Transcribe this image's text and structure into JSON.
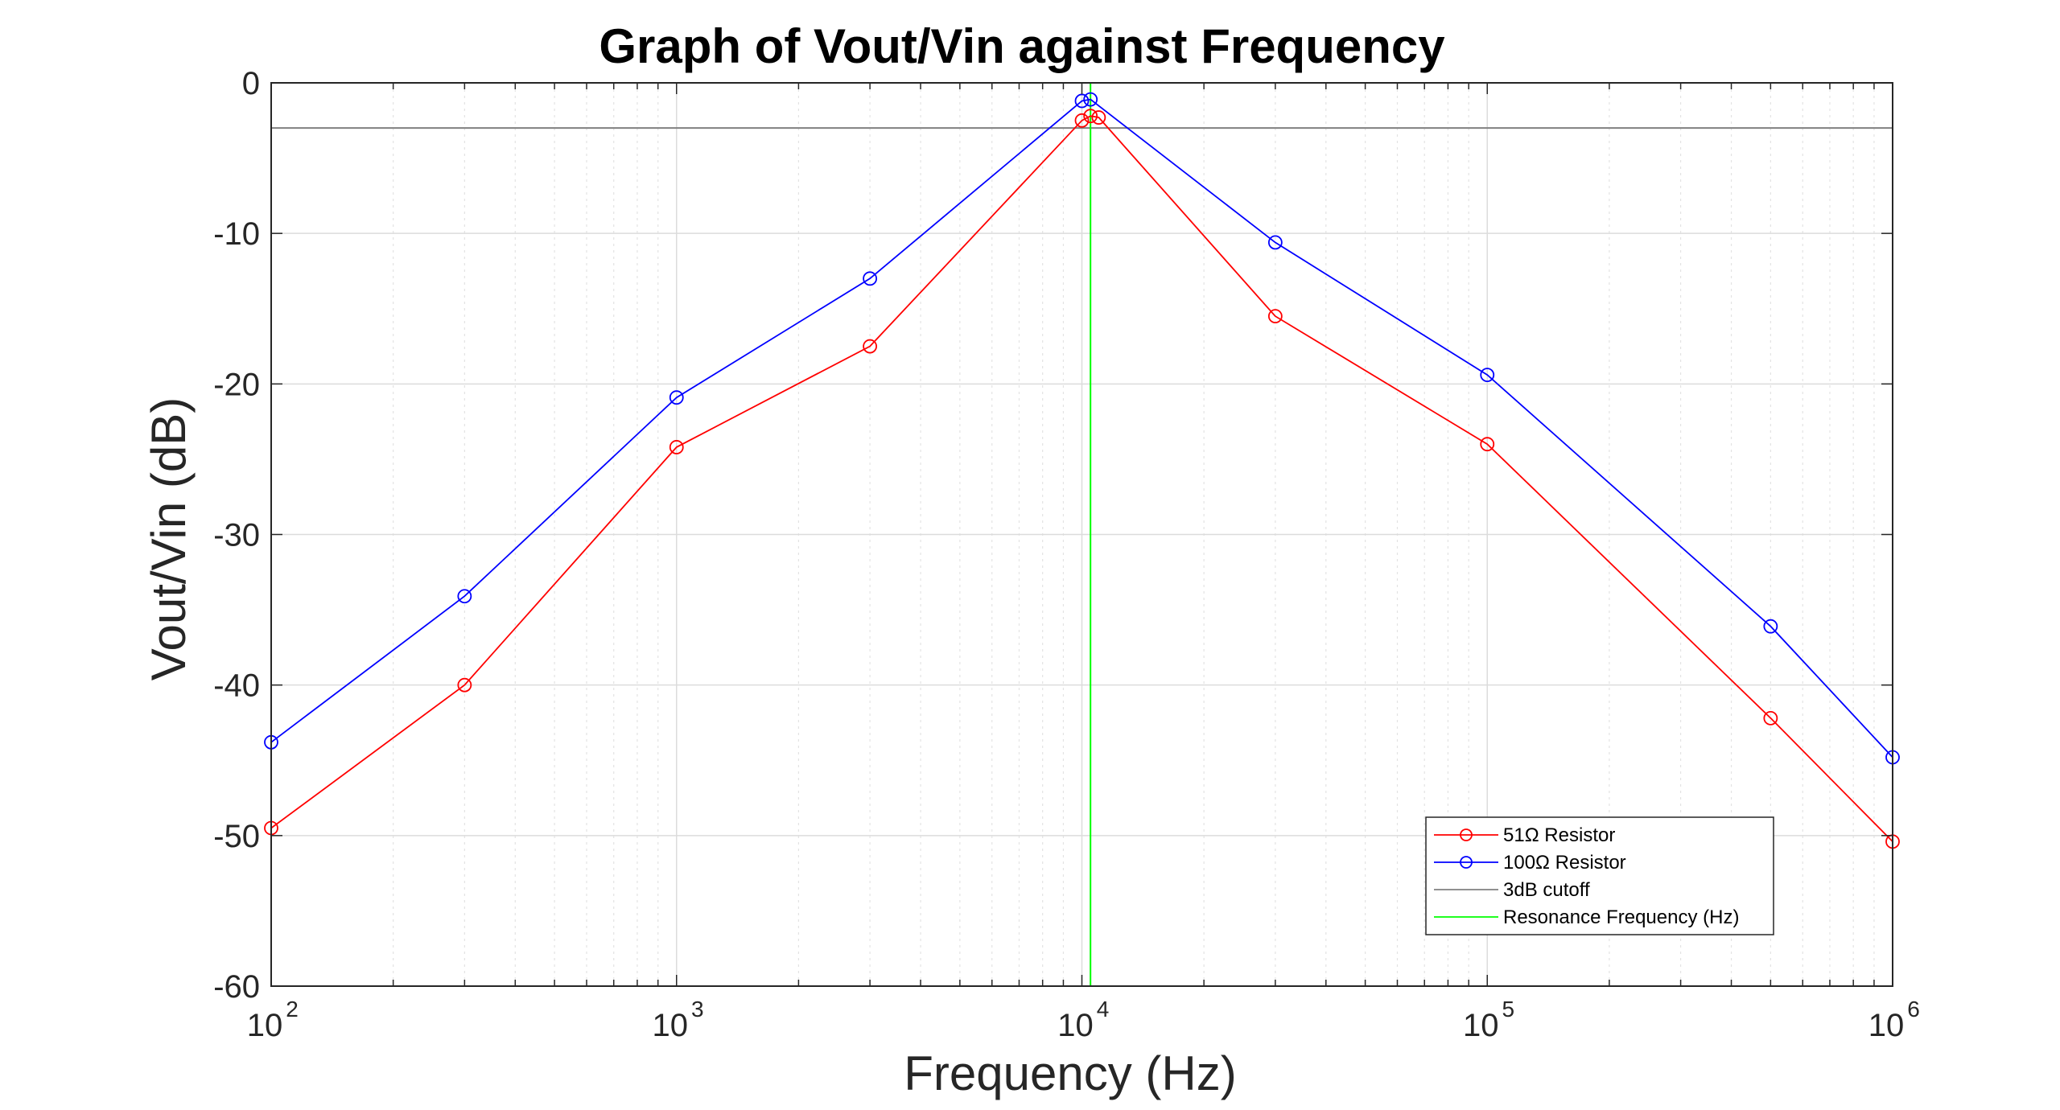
{
  "chart_data": {
    "type": "line",
    "title": "Graph of Vout/Vin against Frequency",
    "xlabel": "Frequency (Hz)",
    "ylabel": "Vout/Vin (dB)",
    "xscale": "log",
    "xlim": [
      100,
      1000000
    ],
    "ylim": [
      -60,
      0
    ],
    "grid": true,
    "legend_position": "bottom-right",
    "x_ticks": [
      {
        "base": "10",
        "exp": "2",
        "value": 100
      },
      {
        "base": "10",
        "exp": "3",
        "value": 1000
      },
      {
        "base": "10",
        "exp": "4",
        "value": 10000
      },
      {
        "base": "10",
        "exp": "5",
        "value": 100000
      },
      {
        "base": "10",
        "exp": "6",
        "value": 1000000
      }
    ],
    "y_ticks": [
      {
        "label": "0",
        "value": 0
      },
      {
        "label": "-10",
        "value": -10
      },
      {
        "label": "-20",
        "value": -20
      },
      {
        "label": "-30",
        "value": -30
      },
      {
        "label": "-40",
        "value": -40
      },
      {
        "label": "-50",
        "value": -50
      },
      {
        "label": "-60",
        "value": -60
      }
    ],
    "series": [
      {
        "name": "51Ω Resistor",
        "color": "#ff0000",
        "marker": "circle",
        "x": [
          100,
          300,
          1000,
          3000,
          10000,
          10500,
          11000,
          30000,
          100000,
          500000,
          1000000
        ],
        "y": [
          -49.5,
          -40.0,
          -24.2,
          -17.5,
          -2.5,
          -2.2,
          -2.3,
          -15.5,
          -24.0,
          -42.2,
          -50.4
        ]
      },
      {
        "name": "100Ω Resistor",
        "color": "#0000ff",
        "marker": "circle",
        "x": [
          100,
          300,
          1000,
          3000,
          10000,
          10500,
          30000,
          100000,
          500000,
          1000000
        ],
        "y": [
          -43.8,
          -34.1,
          -20.9,
          -13.0,
          -1.2,
          -1.1,
          -10.6,
          -19.4,
          -36.1,
          -44.8
        ]
      }
    ],
    "reference_lines": [
      {
        "name": "3dB cutoff",
        "orientation": "horizontal",
        "value": -3,
        "color": "#808080"
      },
      {
        "name": "Resonance Frequency (Hz)",
        "orientation": "vertical",
        "value": 10500,
        "color": "#00ff00"
      }
    ]
  }
}
